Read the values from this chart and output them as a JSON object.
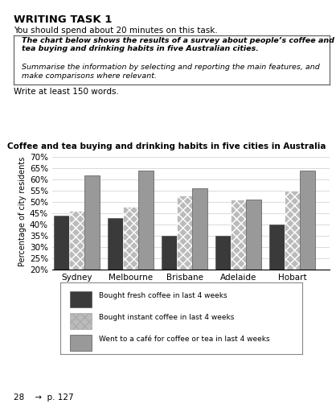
{
  "title": "Coffee and tea buying and drinking habits in five cities in Australia",
  "cities": [
    "Sydney",
    "Melbourne",
    "Brisbane",
    "Adelaide",
    "Hobart"
  ],
  "series": [
    {
      "label": "Bought fresh coffee in last 4 weeks",
      "values": [
        44,
        43,
        35,
        35,
        40
      ],
      "color": "#3a3a3a",
      "hatch": ""
    },
    {
      "label": "Bought instant coffee in last 4 weeks",
      "values": [
        46,
        48,
        53,
        51,
        55
      ],
      "color": "#bbbbbb",
      "hatch": "xxx"
    },
    {
      "label": "Went to a café for coffee or tea in last 4 weeks",
      "values": [
        62,
        64,
        56,
        51,
        64
      ],
      "color": "#999999",
      "hatch": ""
    }
  ],
  "ylabel": "Percentage of city residents",
  "ylim": [
    20,
    72
  ],
  "yticks": [
    20,
    25,
    30,
    35,
    40,
    45,
    50,
    55,
    60,
    65,
    70
  ],
  "ytick_labels": [
    "20%",
    "25%",
    "30%",
    "35%",
    "40%",
    "45%",
    "50%",
    "55%",
    "60%",
    "65%",
    "70%"
  ],
  "background_color": "#ffffff",
  "header_title": "WRITING TASK 1",
  "header_line1": "You should spend about 20 minutes on this task.",
  "box_line1": "The chart below shows the results of a survey about people’s coffee and tea buying and drinking habits in five Australian cities.",
  "box_line2": "Summarise the information by selecting and reporting the main features, and make comparisons where relevant.",
  "write_text": "Write at least 150 words.",
  "footer_text": "28    →  p. 127"
}
